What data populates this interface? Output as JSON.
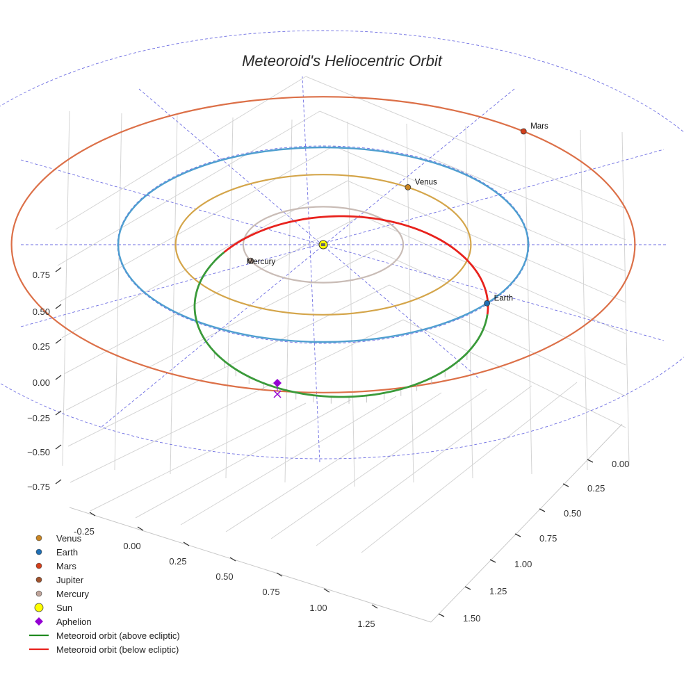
{
  "chart_data": {
    "type": "scatter3d",
    "title": "Meteoroid's Heliocentric Orbit",
    "projection": "3d",
    "axes": {
      "x": {
        "ticks": [
          "-0.25",
          "0.00",
          "0.25",
          "0.50",
          "0.75",
          "1.00",
          "1.25"
        ]
      },
      "y": {
        "ticks": [
          "0.00",
          "0.25",
          "0.50",
          "0.75",
          "1.00",
          "1.25",
          "1.50"
        ]
      },
      "z": {
        "ticks": [
          "0.75",
          "0.50",
          "0.25",
          "0.00",
          "−0.25",
          "−0.50",
          "−0.75"
        ]
      }
    },
    "planets": [
      {
        "name": "Mercury",
        "label": "Mercury",
        "color": "#b39a8d",
        "orbit_color": "#c9bcb6",
        "orbit_radius_au": 0.39
      },
      {
        "name": "Venus",
        "label": "Venus",
        "color": "#c98624",
        "orbit_color": "#d4a54a",
        "orbit_radius_au": 0.72
      },
      {
        "name": "Earth",
        "label": "Earth",
        "color": "#1f6fb4",
        "orbit_color": "#4f9fd0",
        "orbit_radius_au": 1.0
      },
      {
        "name": "Mars",
        "label": "Mars",
        "color": "#d4401c",
        "orbit_color": "#dc7048",
        "orbit_radius_au": 1.52
      }
    ],
    "legend": [
      {
        "label": "Venus",
        "marker": "circle",
        "color": "#c98624"
      },
      {
        "label": "Earth",
        "marker": "circle",
        "color": "#1f6fb4"
      },
      {
        "label": "Mars",
        "marker": "circle",
        "color": "#d4401c"
      },
      {
        "label": "Jupiter",
        "marker": "circle",
        "color": "#a0522d"
      },
      {
        "label": "Mercury",
        "marker": "circle",
        "color": "#bfa49a"
      },
      {
        "label": "Sun",
        "marker": "circle-large",
        "color": "#ffff00"
      },
      {
        "label": "Aphelion",
        "marker": "diamond",
        "color": "#9400d3"
      },
      {
        "label": "Meteoroid orbit (above ecliptic)",
        "marker": "line",
        "color": "#1f8a1f"
      },
      {
        "label": "Meteoroid orbit (below ecliptic)",
        "marker": "line",
        "color": "#e8221d"
      }
    ],
    "colors": {
      "above": "#3a9a3a",
      "below": "#e8221d",
      "grid": "#d4d4d4",
      "guide": "#5555dd",
      "sun": "#ffff00",
      "aphelion": "#9400d3"
    }
  }
}
